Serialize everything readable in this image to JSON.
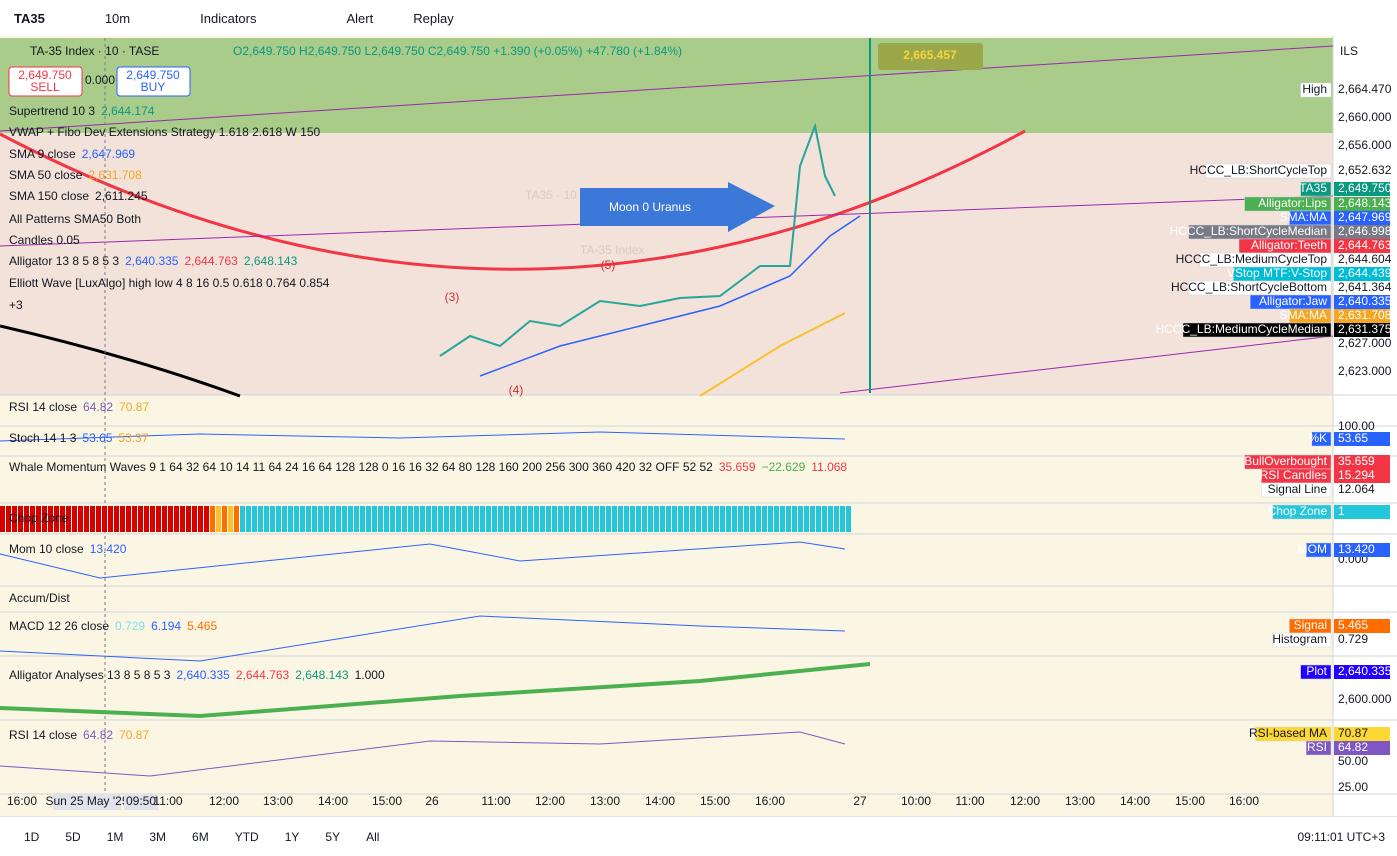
{
  "toolbar": {
    "symbol": "TA35",
    "interval": "10m",
    "indicators": "Indicators",
    "alert": "Alert",
    "replay": "Replay"
  },
  "header": {
    "title": "TA-35 Index · 10 · TASE",
    "ohlc": "O2,649.750 H2,649.750 L2,649.750 C2,649.750 +1.390 (+0.05%) +47.780 (+1.84%)",
    "sell_price": "2,649.750",
    "sell": "SELL",
    "spread": "0.000",
    "buy_price": "2,649.750",
    "buy": "BUY"
  },
  "watermark": "TA35 · 10",
  "watermark_sub": "TA-35 Index",
  "annotation": "Moon 0 Uranus",
  "projection": "2,665.457",
  "wave_labels": [
    "(5)",
    "(3)",
    "(4)"
  ],
  "main_legends": [
    {
      "label": "Supertrend 10 3",
      "values": [
        "2,644.174"
      ],
      "colors": [
        "#089981"
      ]
    },
    {
      "label": "VWAP + Fibo Dev Extensions Strategy 1.618 2.618 W 150",
      "values": [],
      "colors": []
    },
    {
      "label": "SMA 9 close",
      "values": [
        "2,647.969"
      ],
      "colors": [
        "#2962ff"
      ]
    },
    {
      "label": "SMA 50 close",
      "values": [
        "2,631.708"
      ],
      "colors": [
        "#f5a623"
      ]
    },
    {
      "label": "SMA 150 close",
      "values": [
        "2,611.245"
      ],
      "colors": [
        "#131722"
      ]
    },
    {
      "label": "All Patterns SMA50 Both",
      "values": [],
      "colors": []
    },
    {
      "label": "Candles 0.05",
      "values": [],
      "colors": []
    },
    {
      "label": "Alligator 13 8 5 8 5 3",
      "values": [
        "2,640.335",
        "2,644.763",
        "2,648.143"
      ],
      "colors": [
        "#2962ff",
        "#f23645",
        "#089981"
      ]
    },
    {
      "label": "Elliott Wave [LuxAlgo] high low 4 8 16 0.5 0.618 0.764 0.854",
      "values": [],
      "colors": []
    },
    {
      "label": "+3",
      "values": [],
      "colors": []
    }
  ],
  "pane_legends": [
    {
      "label": "RSI 14 close",
      "values": [
        "64.82",
        "70.87"
      ],
      "colors": [
        "#7e57c2",
        "#f5a623"
      ]
    },
    {
      "label": "Stoch 14 1 3",
      "values": [
        "53.65",
        "53.37"
      ],
      "colors": [
        "#2962ff",
        "#f5a623"
      ]
    },
    {
      "label": "Whale Momentum Waves 9 1 64 32 64 10 14 11 64 24 16 64 128 128 0 16 16 32 64 80 128 160 200 256 300 360 420 32 OFF 52 52",
      "values": [
        "35.659",
        "−22.629",
        "11.068"
      ],
      "colors": [
        "#f23645",
        "#4caf50",
        "#f23645"
      ]
    },
    {
      "label": "Chop Zone",
      "values": [],
      "colors": []
    },
    {
      "label": "Mom 10 close",
      "values": [
        "13.420"
      ],
      "colors": [
        "#2962ff"
      ]
    },
    {
      "label": "Accum/Dist",
      "values": [],
      "colors": []
    },
    {
      "label": "MACD 12 26 close",
      "values": [
        "0.729",
        "6.194",
        "5.465"
      ],
      "colors": [
        "#80deea",
        "#2962ff",
        "#ff6d00"
      ]
    },
    {
      "label": "Alligator Analyses 13 8 5 8 5 3",
      "values": [
        "2,640.335",
        "2,644.763",
        "2,648.143",
        "1.000"
      ],
      "colors": [
        "#2962ff",
        "#f23645",
        "#089981",
        "#131722"
      ]
    },
    {
      "label": "RSI 14 close",
      "values": [
        "64.82",
        "70.87"
      ],
      "colors": [
        "#7e57c2",
        "#f5a623"
      ]
    }
  ],
  "currency": "ILS",
  "axis_ticks": [
    "2,660.000",
    "2,656.000",
    "2,627.000",
    "2,623.000",
    "100.00",
    "0.000",
    "2,600.000",
    "50.00",
    "25.00"
  ],
  "price_labels": [
    {
      "name": "High",
      "value": "2,664.470",
      "color": "#ffffff"
    },
    {
      "name": "HCCC_LB:ShortCycleTop",
      "value": "2,652.632",
      "color": "#ffffff"
    },
    {
      "name": "TA35",
      "value": "2,649.750",
      "color": "#089981"
    },
    {
      "name": "Alligator:Lips",
      "value": "2,648.143",
      "color": "#4caf50"
    },
    {
      "name": "SMA:MA",
      "value": "2,647.969",
      "color": "#2962ff"
    },
    {
      "name": "HCCC_LB:ShortCycleMedian",
      "value": "2,646.998",
      "color": "#787b86"
    },
    {
      "name": "Alligator:Teeth",
      "value": "2,644.763",
      "color": "#f23645"
    },
    {
      "name": "HCCC_LB:MediumCycleTop",
      "value": "2,644.604",
      "color": "#ffffff"
    },
    {
      "name": "VStop MTF:V-Stop",
      "value": "2,644.439",
      "color": "#00bcd4"
    },
    {
      "name": "HCCC_LB:ShortCycleBottom",
      "value": "2,641.364",
      "color": "#ffffff"
    },
    {
      "name": "Alligator:Jaw",
      "value": "2,640.335",
      "color": "#2962ff"
    },
    {
      "name": "SMA:MA",
      "value": "2,631.708",
      "color": "#f5a623"
    },
    {
      "name": "HCCC_LB:MediumCycleMedian",
      "value": "2,631.375",
      "color": "#000000"
    },
    {
      "name": "%K",
      "value": "53.65",
      "color": "#2962ff"
    },
    {
      "name": "BullOverbought",
      "value": "35.659",
      "color": "#f23645"
    },
    {
      "name": "RSI Candles",
      "value": "15.294",
      "color": "#f23645"
    },
    {
      "name": "Signal Line",
      "value": "12.064",
      "color": "#ffffff"
    },
    {
      "name": "Chop Zone",
      "value": "1",
      "color": "#26c6da"
    },
    {
      "name": "MOM",
      "value": "13.420",
      "color": "#2962ff"
    },
    {
      "name": "Signal",
      "value": "5.465",
      "color": "#ff6d00"
    },
    {
      "name": "Histogram",
      "value": "0.729",
      "color": "#ffffff"
    },
    {
      "name": "Plot",
      "value": "2,640.335",
      "color": "#2200ff"
    },
    {
      "name": "RSI-based MA",
      "value": "70.87",
      "color": "#fdd835"
    },
    {
      "name": "RSI",
      "value": "64.82",
      "color": "#7e57c2"
    }
  ],
  "time_axis": [
    "16:00",
    "Sun 25 May '25",
    "09:50",
    "11:00",
    "12:00",
    "13:00",
    "14:00",
    "15:00",
    "26",
    "11:00",
    "12:00",
    "13:00",
    "14:00",
    "15:00",
    "16:00",
    "27",
    "10:00",
    "11:00",
    "12:00",
    "13:00",
    "14:00",
    "15:00",
    "16:00"
  ],
  "footer": {
    "ranges": [
      "1D",
      "5D",
      "1M",
      "3M",
      "6M",
      "YTD",
      "1Y",
      "5Y",
      "All"
    ],
    "clock": "09:11:01 UTC+3"
  }
}
